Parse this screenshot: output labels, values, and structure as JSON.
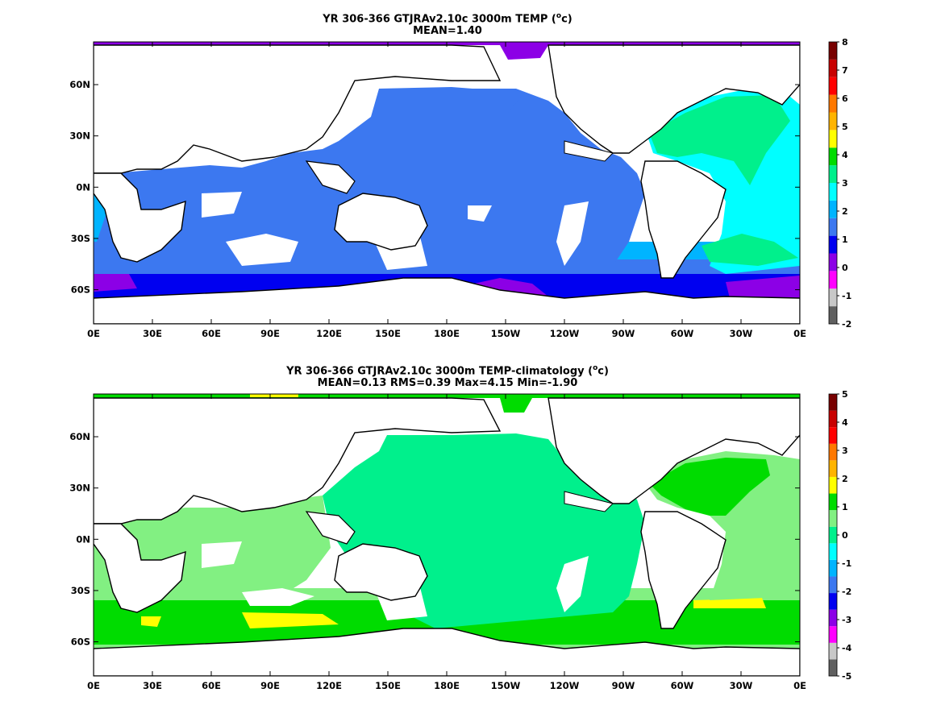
{
  "colors": {
    "levels_top": [
      "#606060",
      "#c8c8c8",
      "#ff00ff",
      "#8c00e6",
      "#0000f0",
      "#3c78f0",
      "#00b4ff",
      "#00ffff",
      "#00f08c",
      "#00dc00",
      "#ffff00",
      "#ffb400",
      "#ff7800",
      "#ff0000",
      "#c80000",
      "#780000"
    ],
    "levels_bottom": [
      "#606060",
      "#c8c8c8",
      "#ff00ff",
      "#8c00e6",
      "#0000f0",
      "#3c78f0",
      "#00b4ff",
      "#00ffff",
      "#00f08c",
      "#82f082",
      "#00dc00",
      "#ffff00",
      "#ffb400",
      "#ff7800",
      "#ff0000",
      "#c80000",
      "#780000"
    ],
    "land": "#ffffff",
    "coast": "#000000"
  },
  "chart_data": [
    {
      "type": "heatmap",
      "title": "YR 306-366 GTJRAv2.10c 3000m TEMP (",
      "title_unit_sup": "o",
      "title_unit_tail": "c)",
      "subtitle": "MEAN=1.40",
      "x_ticks": [
        "0E",
        "30E",
        "60E",
        "90E",
        "120E",
        "150E",
        "180E",
        "150W",
        "120W",
        "90W",
        "60W",
        "30W",
        "0E"
      ],
      "y_ticks": [
        "60N",
        "30N",
        "0N",
        "30S",
        "60S"
      ],
      "xlim": [
        0,
        360
      ],
      "ylim": [
        -80,
        85
      ],
      "colorbar_ticks": [
        "8",
        "7",
        "6",
        "5",
        "4",
        "3",
        "2",
        "1",
        "0",
        "-1",
        "-2"
      ],
      "colorbar_range": [
        -2,
        8
      ],
      "colorbar_levels": [
        -2,
        -1.5,
        -1,
        -0.5,
        0,
        0.5,
        1,
        1.5,
        2,
        2.5,
        3,
        4,
        5,
        6,
        7,
        8
      ],
      "mean": 1.4
    },
    {
      "type": "heatmap",
      "title": "YR 306-366 GTJRAv2.10c 3000m TEMP-climatology (",
      "title_unit_sup": "o",
      "title_unit_tail": "c)",
      "subtitle": "MEAN=0.13   RMS=0.39   Max=4.15   Min=-1.90",
      "x_ticks": [
        "0E",
        "30E",
        "60E",
        "90E",
        "120E",
        "150E",
        "180E",
        "150W",
        "120W",
        "90W",
        "60W",
        "30W",
        "0E"
      ],
      "y_ticks": [
        "60N",
        "30N",
        "0N",
        "30S",
        "60S"
      ],
      "xlim": [
        0,
        360
      ],
      "ylim": [
        -80,
        85
      ],
      "colorbar_ticks": [
        "5",
        "4",
        "3",
        "2",
        "1",
        "0",
        "-1",
        "-2",
        "-3",
        "-4",
        "-5"
      ],
      "colorbar_range": [
        -5,
        5
      ],
      "mean": 0.13,
      "rms": 0.39,
      "max": 4.15,
      "min": -1.9
    }
  ]
}
